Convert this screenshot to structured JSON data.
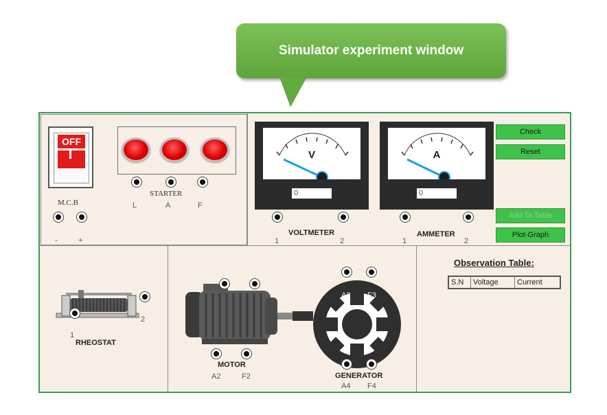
{
  "callout": {
    "title": "Simulator experiment window"
  },
  "mcb": {
    "switch_label": "OFF",
    "label": "M.C.B",
    "terminal_minus": "-",
    "terminal_plus": "+"
  },
  "starter": {
    "label": "STARTER",
    "terminals": [
      "L",
      "A",
      "F"
    ]
  },
  "voltmeter": {
    "symbol": "V",
    "reading": "0",
    "label": "VOLTMETER",
    "terminal_1": "1",
    "terminal_2": "2"
  },
  "ammeter": {
    "symbol": "A",
    "reading": "0",
    "label": "AMMETER",
    "terminal_1": "1",
    "terminal_2": "2"
  },
  "buttons": {
    "check": "Check",
    "reset": "Reset",
    "add_to_table": "Add To Table",
    "plot_graph": "Plot-Graph"
  },
  "rheostat": {
    "label": "RHEOSTAT",
    "terminal_1": "1",
    "terminal_2": "2"
  },
  "motor": {
    "label": "MOTOR",
    "terminal_a2": "A2",
    "terminal_f2": "F2"
  },
  "generator": {
    "label": "GENERATOR",
    "terminal_a3": "A3",
    "terminal_f3": "F3",
    "terminal_a4": "A4",
    "terminal_f4": "F4"
  },
  "observation": {
    "title": "Observation Table:",
    "columns": [
      "S.N",
      "Voltage",
      "Current"
    ]
  },
  "colors": {
    "panel_bg": "#f7efe6",
    "panel_border": "#3a9b55",
    "button_green": "#3fc24a",
    "lamp_red": "#e00000",
    "callout_green": "#6cb548"
  }
}
